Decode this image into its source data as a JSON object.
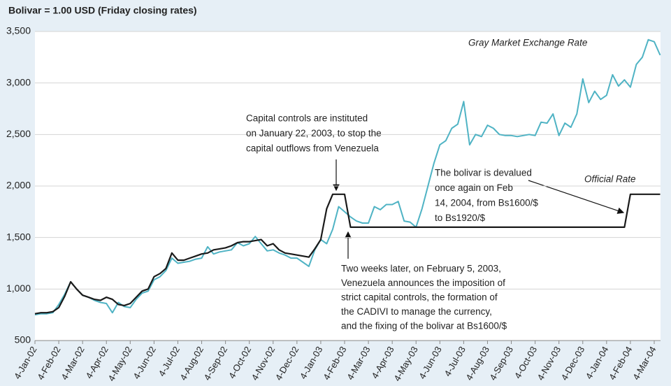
{
  "chart_data": {
    "type": "line",
    "title": "Bolivar = 1.00 USD (Friday closing rates)",
    "categories": [
      "4-Jan-02",
      null,
      null,
      null,
      "4-Feb-02",
      null,
      null,
      null,
      "4-Mar-02",
      null,
      null,
      null,
      "4-Apr-02",
      null,
      null,
      null,
      "4-May-02",
      null,
      null,
      null,
      "4-Jun-02",
      null,
      null,
      null,
      "4-Jul-02",
      null,
      null,
      null,
      "4-Aug-02",
      null,
      null,
      null,
      "4-Sep-02",
      null,
      null,
      null,
      "4-Oct-02",
      null,
      null,
      null,
      "4-Nov-02",
      null,
      null,
      null,
      "4-Dec-02",
      null,
      null,
      null,
      "4-Jan-03",
      null,
      null,
      null,
      "4-Feb-03",
      null,
      null,
      null,
      "4-Mar-03",
      null,
      null,
      null,
      "4-Apr-03",
      null,
      null,
      null,
      "4-May-03",
      null,
      null,
      null,
      "4-Jun-03",
      null,
      null,
      null,
      "4-Jul-03",
      null,
      null,
      null,
      "4-Aug-03",
      null,
      null,
      null,
      "4-Sep-03",
      null,
      null,
      null,
      "4-Oct-03",
      null,
      null,
      null,
      "4-Nov-03",
      null,
      null,
      null,
      "4-Dec-03",
      null,
      null,
      null,
      "4-Jan-04",
      null,
      null,
      null,
      "4-Feb-04",
      null,
      null,
      null,
      "4-Mar-04",
      null
    ],
    "series": [
      {
        "name": "Gray Market Exchange Rate",
        "color": "#4fb3c4",
        "values": [
          750,
          760,
          760,
          770,
          850,
          950,
          1070,
          1000,
          940,
          920,
          890,
          870,
          860,
          770,
          870,
          830,
          820,
          900,
          960,
          980,
          1090,
          1120,
          1180,
          1300,
          1250,
          1260,
          1270,
          1290,
          1300,
          1410,
          1340,
          1360,
          1370,
          1380,
          1450,
          1420,
          1440,
          1510,
          1440,
          1370,
          1380,
          1350,
          1330,
          1300,
          1300,
          1260,
          1220,
          1380,
          1480,
          1440,
          1580,
          1800,
          1750,
          1700,
          1660,
          1640,
          1640,
          1800,
          1770,
          1820,
          1820,
          1850,
          1660,
          1650,
          1600,
          1780,
          2000,
          2220,
          2400,
          2440,
          2560,
          2600,
          2820,
          2400,
          2500,
          2480,
          2590,
          2560,
          2500,
          2490,
          2490,
          2480,
          2490,
          2500,
          2490,
          2620,
          2610,
          2700,
          2490,
          2610,
          2570,
          2700,
          3040,
          2810,
          2920,
          2840,
          2880,
          3080,
          2970,
          3030,
          2960,
          3180,
          3250,
          3420,
          3400,
          3270
        ]
      },
      {
        "name": "Official Rate",
        "color": "#1a1a1a",
        "values": [
          760,
          770,
          770,
          780,
          820,
          930,
          1070,
          1000,
          940,
          920,
          900,
          890,
          920,
          900,
          850,
          840,
          860,
          920,
          980,
          1000,
          1120,
          1150,
          1200,
          1350,
          1280,
          1280,
          1300,
          1320,
          1340,
          1350,
          1380,
          1390,
          1400,
          1420,
          1450,
          1460,
          1460,
          1470,
          1480,
          1420,
          1440,
          1380,
          1350,
          1340,
          1330,
          1320,
          1310,
          1390,
          1480,
          1780,
          1920,
          1920,
          1920,
          1600,
          1600,
          1600,
          1600,
          1600,
          1600,
          1600,
          1600,
          1600,
          1600,
          1600,
          1600,
          1600,
          1600,
          1600,
          1600,
          1600,
          1600,
          1600,
          1600,
          1600,
          1600,
          1600,
          1600,
          1600,
          1600,
          1600,
          1600,
          1600,
          1600,
          1600,
          1600,
          1600,
          1600,
          1600,
          1600,
          1600,
          1600,
          1600,
          1600,
          1600,
          1600,
          1600,
          1600,
          1600,
          1600,
          1600,
          1920,
          1920,
          1920,
          1920,
          1920,
          1920
        ]
      }
    ],
    "ylim": [
      500,
      3500
    ],
    "yticks": [
      500,
      {
        "value": 1000,
        "label": "1,000"
      },
      {
        "value": 1500,
        "label": "1,500"
      },
      {
        "value": 2000,
        "label": "2,000"
      },
      {
        "value": 2500,
        "label": "2,500"
      },
      {
        "value": 3000,
        "label": "3,000"
      },
      {
        "value": 3500,
        "label": "3,500"
      }
    ],
    "grid": true,
    "annotations": [
      {
        "text": [
          "Capital controls are instituted",
          "on January 22, 2003, to stop the",
          "capital outflows from Venezuela"
        ]
      },
      {
        "text": [
          "The bolivar is devalued",
          "once again on Feb",
          "14, 2004, from Bs1600/$",
          "to Bs1920/$"
        ]
      },
      {
        "text": [
          "Two weeks later, on February 5, 2003,",
          "Venezuela announces the imposition of",
          "strict capital controls, the formation of",
          "the CADIVI to manage the currency,",
          "and the fixing of the bolivar at Bs1600/$"
        ]
      }
    ]
  }
}
